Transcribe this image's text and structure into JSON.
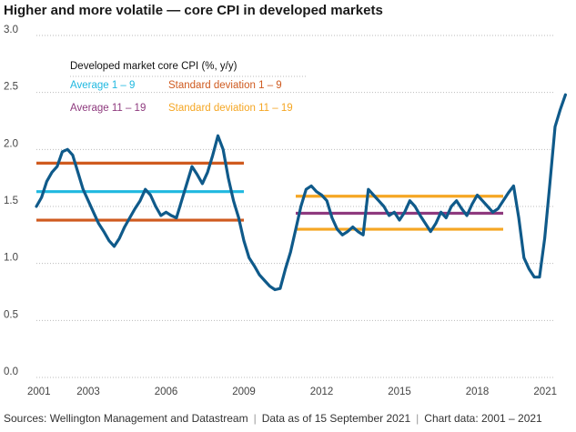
{
  "title": "Higher and more volatile — core CPI in developed markets",
  "footer": {
    "source": "Sources: Wellington Management and Datastream",
    "data_as_of": "Data as of 15 September 2021",
    "chart_data_range": "Chart data: 2001 – 2021"
  },
  "colors": {
    "series": "#0f5a8a",
    "average_1_9": "#1fb8e0",
    "sd_1_9": "#cf5a1f",
    "average_11_19": "#8e3a7e",
    "sd_11_19": "#f5a623",
    "grid": "#bbbbbb"
  },
  "chart_data": {
    "type": "line",
    "legend_title": "Developed market core CPI (%, y/y)",
    "legend_position": "top-left",
    "legend": [
      {
        "key": "average_1_9",
        "label": "Average 1 – 9"
      },
      {
        "key": "sd_1_9",
        "label": "Standard deviation 1 – 9"
      },
      {
        "key": "average_11_19",
        "label": "Average 11 – 19"
      },
      {
        "key": "sd_11_19",
        "label": "Standard deviation 11 – 19"
      }
    ],
    "xlim": [
      2001,
      2021
    ],
    "ylim": [
      0,
      3.0
    ],
    "grid": "horizontal dotted",
    "y_ticks": [
      "0.0",
      "0.5",
      "1.0",
      "1.5",
      "2.0",
      "2.5",
      "3.0"
    ],
    "x_ticks": [
      "2001",
      "2003",
      "2006",
      "2009",
      "2012",
      "2015",
      "2018",
      "2021"
    ],
    "series": [
      {
        "points": [
          [
            2001.0,
            1.5
          ],
          [
            2001.2,
            1.58
          ],
          [
            2001.4,
            1.72
          ],
          [
            2001.6,
            1.8
          ],
          [
            2001.8,
            1.85
          ],
          [
            2002.0,
            1.98
          ],
          [
            2002.2,
            2.0
          ],
          [
            2002.4,
            1.95
          ],
          [
            2002.6,
            1.8
          ],
          [
            2002.8,
            1.65
          ],
          [
            2003.0,
            1.55
          ],
          [
            2003.2,
            1.45
          ],
          [
            2003.4,
            1.35
          ],
          [
            2003.6,
            1.28
          ],
          [
            2003.8,
            1.2
          ],
          [
            2004.0,
            1.15
          ],
          [
            2004.2,
            1.22
          ],
          [
            2004.4,
            1.32
          ],
          [
            2004.6,
            1.4
          ],
          [
            2004.8,
            1.48
          ],
          [
            2005.0,
            1.55
          ],
          [
            2005.2,
            1.65
          ],
          [
            2005.4,
            1.6
          ],
          [
            2005.6,
            1.5
          ],
          [
            2005.8,
            1.42
          ],
          [
            2006.0,
            1.45
          ],
          [
            2006.2,
            1.42
          ],
          [
            2006.4,
            1.4
          ],
          [
            2006.6,
            1.55
          ],
          [
            2006.8,
            1.7
          ],
          [
            2007.0,
            1.85
          ],
          [
            2007.2,
            1.78
          ],
          [
            2007.4,
            1.7
          ],
          [
            2007.6,
            1.8
          ],
          [
            2007.8,
            1.95
          ],
          [
            2008.0,
            2.12
          ],
          [
            2008.2,
            2.0
          ],
          [
            2008.4,
            1.75
          ],
          [
            2008.6,
            1.55
          ],
          [
            2008.8,
            1.4
          ],
          [
            2009.0,
            1.2
          ],
          [
            2009.2,
            1.05
          ],
          [
            2009.4,
            0.98
          ],
          [
            2009.6,
            0.9
          ],
          [
            2009.8,
            0.85
          ],
          [
            2010.0,
            0.8
          ],
          [
            2010.2,
            0.77
          ],
          [
            2010.4,
            0.78
          ],
          [
            2010.6,
            0.95
          ],
          [
            2010.8,
            1.1
          ],
          [
            2011.0,
            1.3
          ],
          [
            2011.2,
            1.5
          ],
          [
            2011.4,
            1.65
          ],
          [
            2011.6,
            1.68
          ],
          [
            2011.8,
            1.63
          ],
          [
            2012.0,
            1.6
          ],
          [
            2012.2,
            1.55
          ],
          [
            2012.4,
            1.4
          ],
          [
            2012.6,
            1.3
          ],
          [
            2012.8,
            1.25
          ],
          [
            2013.0,
            1.28
          ],
          [
            2013.2,
            1.32
          ],
          [
            2013.4,
            1.28
          ],
          [
            2013.6,
            1.25
          ],
          [
            2013.8,
            1.65
          ],
          [
            2014.0,
            1.6
          ],
          [
            2014.2,
            1.55
          ],
          [
            2014.4,
            1.5
          ],
          [
            2014.6,
            1.42
          ],
          [
            2014.8,
            1.45
          ],
          [
            2015.0,
            1.38
          ],
          [
            2015.2,
            1.45
          ],
          [
            2015.4,
            1.55
          ],
          [
            2015.6,
            1.5
          ],
          [
            2015.8,
            1.42
          ],
          [
            2016.0,
            1.35
          ],
          [
            2016.2,
            1.28
          ],
          [
            2016.4,
            1.35
          ],
          [
            2016.6,
            1.45
          ],
          [
            2016.8,
            1.4
          ],
          [
            2017.0,
            1.5
          ],
          [
            2017.2,
            1.55
          ],
          [
            2017.4,
            1.48
          ],
          [
            2017.6,
            1.42
          ],
          [
            2017.8,
            1.52
          ],
          [
            2018.0,
            1.6
          ],
          [
            2018.2,
            1.55
          ],
          [
            2018.4,
            1.5
          ],
          [
            2018.6,
            1.45
          ],
          [
            2018.8,
            1.48
          ],
          [
            2019.0,
            1.55
          ],
          [
            2019.2,
            1.62
          ],
          [
            2019.4,
            1.68
          ],
          [
            2019.6,
            1.4
          ],
          [
            2019.8,
            1.05
          ],
          [
            2020.0,
            0.95
          ],
          [
            2020.2,
            0.88
          ],
          [
            2020.4,
            0.88
          ],
          [
            2020.6,
            1.22
          ],
          [
            2020.8,
            1.7
          ],
          [
            2021.0,
            2.2
          ],
          [
            2021.2,
            2.35
          ],
          [
            2021.4,
            2.48
          ]
        ]
      }
    ],
    "reference_lines": [
      {
        "key": "sd_1_9",
        "y": 1.88,
        "x_start": 2001.0,
        "x_end": 2009.0
      },
      {
        "key": "average_1_9",
        "y": 1.63,
        "x_start": 2001.0,
        "x_end": 2009.0
      },
      {
        "key": "sd_1_9",
        "y": 1.38,
        "x_start": 2001.0,
        "x_end": 2009.0
      },
      {
        "key": "sd_11_19",
        "y": 1.59,
        "x_start": 2011.0,
        "x_end": 2019.0
      },
      {
        "key": "average_11_19",
        "y": 1.44,
        "x_start": 2011.0,
        "x_end": 2019.0
      },
      {
        "key": "sd_11_19",
        "y": 1.3,
        "x_start": 2011.0,
        "x_end": 2019.0
      }
    ]
  }
}
